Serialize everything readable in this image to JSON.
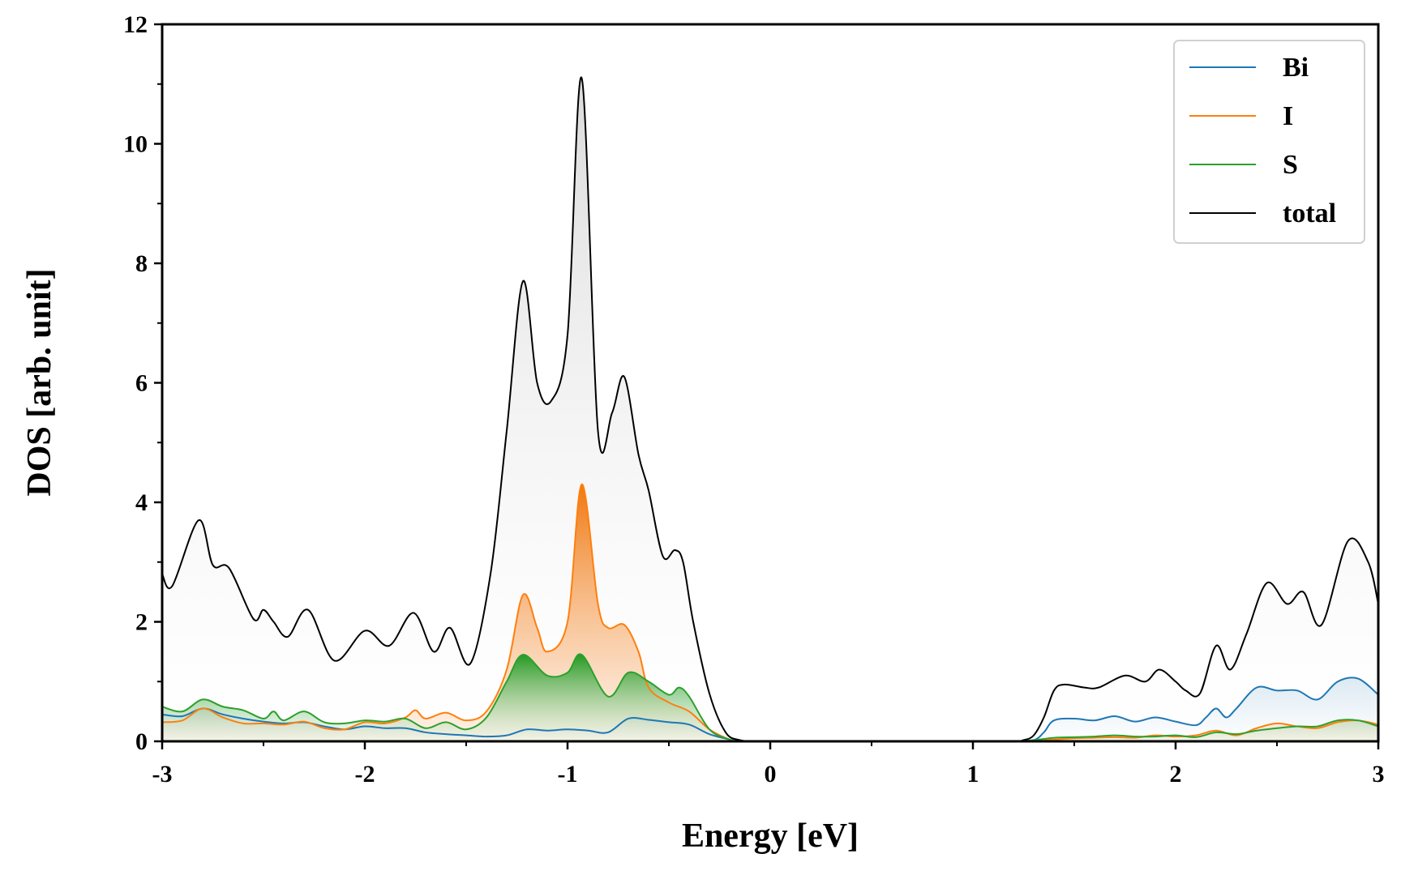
{
  "chart_data": {
    "type": "area",
    "title": "",
    "xlabel": "Energy [eV]",
    "ylabel": "DOS [arb. unit]",
    "xlim": [
      -3,
      3
    ],
    "ylim": [
      0,
      12
    ],
    "x_ticks": [
      -3,
      -2,
      -1,
      0,
      1,
      2,
      3
    ],
    "y_ticks": [
      0,
      2,
      4,
      6,
      8,
      10,
      12
    ],
    "x_tick_labels": [
      "-3",
      "-2",
      "-1",
      "0",
      "1",
      "2",
      "3"
    ],
    "y_tick_labels": [
      "0",
      "2",
      "4",
      "6",
      "8",
      "10",
      "12"
    ],
    "grid": false,
    "legend_position": "top-right",
    "series": [
      {
        "name": "Bi",
        "color": "#1f77b4",
        "x": [
          -3.0,
          -2.9,
          -2.8,
          -2.7,
          -2.6,
          -2.5,
          -2.4,
          -2.3,
          -2.2,
          -2.1,
          -2.0,
          -1.9,
          -1.8,
          -1.7,
          -1.6,
          -1.5,
          -1.4,
          -1.3,
          -1.2,
          -1.1,
          -1.0,
          -0.9,
          -0.8,
          -0.7,
          -0.6,
          -0.5,
          -0.4,
          -0.3,
          -0.2,
          -0.15,
          0.0,
          1.0,
          1.2,
          1.3,
          1.35,
          1.4,
          1.5,
          1.6,
          1.7,
          1.8,
          1.9,
          2.0,
          2.1,
          2.15,
          2.2,
          2.25,
          2.3,
          2.4,
          2.5,
          2.6,
          2.7,
          2.8,
          2.9,
          3.0
        ],
        "values": [
          0.45,
          0.42,
          0.55,
          0.45,
          0.38,
          0.33,
          0.3,
          0.32,
          0.25,
          0.2,
          0.25,
          0.22,
          0.22,
          0.15,
          0.12,
          0.1,
          0.08,
          0.1,
          0.2,
          0.18,
          0.2,
          0.18,
          0.15,
          0.38,
          0.36,
          0.32,
          0.28,
          0.12,
          0.03,
          0.0,
          0.0,
          0.0,
          0.0,
          0.02,
          0.15,
          0.35,
          0.38,
          0.35,
          0.42,
          0.33,
          0.4,
          0.33,
          0.27,
          0.4,
          0.55,
          0.4,
          0.55,
          0.9,
          0.85,
          0.85,
          0.7,
          1.0,
          1.05,
          0.78
        ]
      },
      {
        "name": "I",
        "color": "#ff7f0e",
        "x": [
          -3.0,
          -2.9,
          -2.8,
          -2.7,
          -2.6,
          -2.5,
          -2.4,
          -2.3,
          -2.2,
          -2.1,
          -2.0,
          -1.9,
          -1.8,
          -1.75,
          -1.7,
          -1.6,
          -1.5,
          -1.4,
          -1.3,
          -1.22,
          -1.15,
          -1.1,
          -1.0,
          -0.93,
          -0.85,
          -0.8,
          -0.72,
          -0.65,
          -0.6,
          -0.5,
          -0.4,
          -0.3,
          -0.2,
          -0.15,
          0.0,
          1.0,
          1.2,
          1.3,
          1.4,
          1.5,
          1.6,
          1.7,
          1.8,
          1.9,
          2.0,
          2.1,
          2.2,
          2.3,
          2.4,
          2.5,
          2.6,
          2.7,
          2.8,
          2.9,
          3.0
        ],
        "values": [
          0.32,
          0.35,
          0.55,
          0.4,
          0.3,
          0.3,
          0.28,
          0.33,
          0.22,
          0.2,
          0.32,
          0.3,
          0.4,
          0.52,
          0.38,
          0.48,
          0.35,
          0.5,
          1.2,
          2.45,
          1.9,
          1.5,
          2.0,
          4.3,
          2.3,
          1.9,
          1.95,
          1.5,
          0.9,
          0.65,
          0.5,
          0.2,
          0.03,
          0.0,
          0.0,
          0.0,
          0.0,
          0.01,
          0.03,
          0.05,
          0.06,
          0.07,
          0.06,
          0.1,
          0.08,
          0.1,
          0.18,
          0.1,
          0.22,
          0.3,
          0.25,
          0.22,
          0.32,
          0.35,
          0.28
        ]
      },
      {
        "name": "S",
        "color": "#2ca02c",
        "x": [
          -3.0,
          -2.9,
          -2.8,
          -2.7,
          -2.6,
          -2.5,
          -2.45,
          -2.4,
          -2.3,
          -2.2,
          -2.1,
          -2.0,
          -1.9,
          -1.8,
          -1.7,
          -1.6,
          -1.5,
          -1.4,
          -1.3,
          -1.22,
          -1.1,
          -1.0,
          -0.93,
          -0.8,
          -0.7,
          -0.6,
          -0.5,
          -0.45,
          -0.4,
          -0.3,
          -0.2,
          -0.15,
          0.0,
          1.0,
          1.2,
          1.3,
          1.4,
          1.5,
          1.6,
          1.7,
          1.8,
          1.9,
          2.0,
          2.1,
          2.2,
          2.3,
          2.4,
          2.5,
          2.6,
          2.7,
          2.8,
          2.9,
          3.0
        ],
        "values": [
          0.58,
          0.5,
          0.7,
          0.58,
          0.52,
          0.38,
          0.5,
          0.35,
          0.5,
          0.32,
          0.3,
          0.35,
          0.33,
          0.38,
          0.22,
          0.32,
          0.2,
          0.4,
          1.0,
          1.45,
          1.1,
          1.15,
          1.45,
          0.75,
          1.15,
          1.0,
          0.78,
          0.9,
          0.75,
          0.2,
          0.03,
          0.0,
          0.0,
          0.0,
          0.0,
          0.02,
          0.06,
          0.07,
          0.08,
          0.1,
          0.08,
          0.08,
          0.1,
          0.07,
          0.15,
          0.12,
          0.18,
          0.22,
          0.25,
          0.25,
          0.35,
          0.35,
          0.25
        ]
      },
      {
        "name": "total",
        "color": "#000000",
        "x": [
          -3.0,
          -2.95,
          -2.82,
          -2.75,
          -2.67,
          -2.55,
          -2.5,
          -2.45,
          -2.38,
          -2.28,
          -2.15,
          -2.0,
          -1.88,
          -1.76,
          -1.66,
          -1.58,
          -1.48,
          -1.38,
          -1.3,
          -1.22,
          -1.15,
          -1.08,
          -1.0,
          -0.93,
          -0.85,
          -0.78,
          -0.72,
          -0.65,
          -0.6,
          -0.53,
          -0.47,
          -0.43,
          -0.38,
          -0.3,
          -0.22,
          -0.15,
          -0.1,
          0.0,
          1.0,
          1.2,
          1.25,
          1.3,
          1.35,
          1.4,
          1.45,
          1.55,
          1.62,
          1.75,
          1.85,
          1.92,
          2.0,
          2.05,
          2.12,
          2.2,
          2.27,
          2.35,
          2.45,
          2.55,
          2.63,
          2.72,
          2.85,
          2.95,
          3.0
        ],
        "values": [
          2.8,
          2.6,
          3.7,
          2.95,
          2.9,
          2.05,
          2.2,
          2.0,
          1.75,
          2.2,
          1.35,
          1.85,
          1.6,
          2.15,
          1.5,
          1.9,
          1.3,
          2.8,
          5.2,
          7.7,
          6.0,
          5.7,
          6.8,
          11.1,
          5.2,
          5.5,
          6.1,
          4.8,
          4.2,
          3.1,
          3.2,
          3.0,
          2.0,
          0.8,
          0.15,
          0.02,
          0.0,
          0.0,
          0.0,
          0.0,
          0.02,
          0.1,
          0.4,
          0.85,
          0.95,
          0.9,
          0.9,
          1.1,
          1.0,
          1.2,
          1.0,
          0.85,
          0.8,
          1.6,
          1.2,
          1.8,
          2.65,
          2.3,
          2.5,
          1.95,
          3.35,
          3.0,
          2.3
        ]
      }
    ]
  }
}
